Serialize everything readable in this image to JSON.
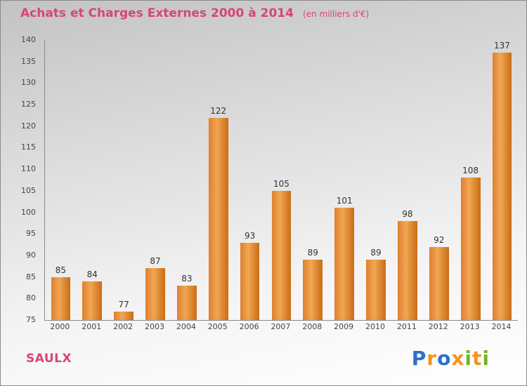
{
  "title": "Achats et Charges Externes 2000 à 2014",
  "subtitle": "(en milliers d'€)",
  "footer": {
    "company": "SAULX"
  },
  "logo": {
    "name": "Proxiti",
    "letters": [
      {
        "ch": "P",
        "color": "#2a6fce"
      },
      {
        "ch": "r",
        "color": "#f6921e"
      },
      {
        "ch": "o",
        "color": "#2a6fce"
      },
      {
        "ch": "x",
        "color": "#f6921e"
      },
      {
        "ch": "i",
        "color": "#72b626"
      },
      {
        "ch": "t",
        "color": "#f6921e"
      },
      {
        "ch": "i",
        "color": "#72b626"
      }
    ]
  },
  "colors": {
    "title": "#d84477",
    "company": "#d84477",
    "bar_main": "#e8913d",
    "bar_dark": "#c96d15",
    "axis": "#8a8a8a",
    "value_text": "#333333"
  },
  "chart_data": {
    "type": "bar",
    "title": "Achats et Charges Externes 2000 à 2014",
    "subtitle": "(en milliers d'€)",
    "categories": [
      "2000",
      "2001",
      "2002",
      "2003",
      "2004",
      "2005",
      "2006",
      "2007",
      "2008",
      "2009",
      "2010",
      "2011",
      "2012",
      "2013",
      "2014"
    ],
    "values": [
      85,
      84,
      77,
      87,
      83,
      122,
      93,
      105,
      89,
      101,
      89,
      98,
      92,
      108,
      137
    ],
    "xlabel": "",
    "ylabel": "",
    "ylim": [
      75,
      140
    ],
    "ytick_step": 5,
    "grid": false,
    "legend": false
  }
}
